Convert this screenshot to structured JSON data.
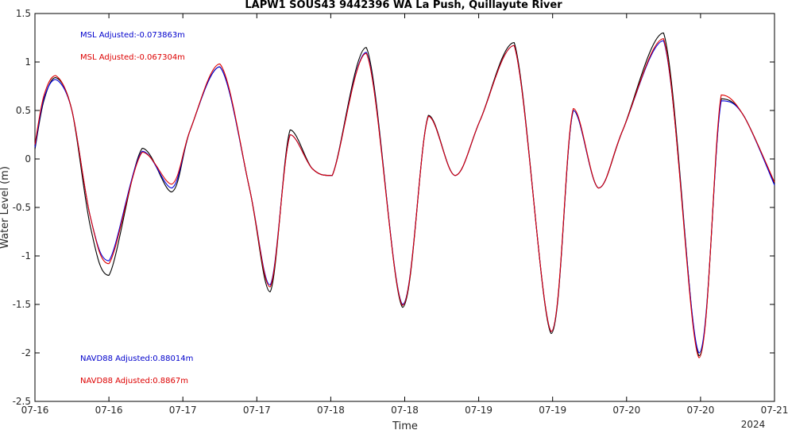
{
  "chart_data": {
    "type": "line",
    "title": "LAPW1 SOUS43 9442396 WA La Push, Quillayute River",
    "xlabel": "Time",
    "ylabel": "Water Level (m)",
    "ylim": [
      -2.5,
      1.5
    ],
    "yticks": [
      -2.5,
      -2,
      -1.5,
      -1,
      -0.5,
      0,
      0.5,
      1,
      1.5
    ],
    "ytick_labels": [
      "-2.5",
      "-2",
      "-1.5",
      "-1",
      "-0.5",
      "0",
      "0.5",
      "1",
      "1.5"
    ],
    "xlim": [
      0,
      10
    ],
    "xticks": [
      0,
      1,
      2,
      3,
      4,
      5,
      6,
      7,
      8,
      9,
      10
    ],
    "xtick_labels": [
      "07-16",
      "07-16",
      "07-17",
      "07-17",
      "07-18",
      "07-18",
      "07-19",
      "07-19",
      "07-20",
      "07-20",
      "07-21"
    ],
    "x_year_label": "2024",
    "grid": false,
    "annotations": [
      {
        "text": "MSL Adjusted:-0.073863m",
        "color": "#0000cc",
        "pos": "top-left"
      },
      {
        "text": "MSL Adjusted:-0.067304m",
        "color": "#dd0000",
        "pos": "top-left"
      },
      {
        "text": "NAVD88 Adjusted:0.88014m",
        "color": "#0000cc",
        "pos": "bottom-left"
      },
      {
        "text": "NAVD88 Adjusted:0.8867m",
        "color": "#dd0000",
        "pos": "bottom-left"
      }
    ],
    "series": [
      {
        "color": "#000000",
        "x": [
          0,
          0.12,
          0.28,
          0.5,
          0.75,
          1.0,
          1.45,
          1.85,
          2.1,
          2.5,
          2.9,
          3.18,
          3.45,
          3.75,
          4.02,
          4.48,
          4.97,
          5.32,
          5.68,
          6.02,
          6.48,
          6.98,
          7.28,
          7.62,
          7.95,
          8.5,
          8.98,
          9.28,
          9.58,
          10.0
        ],
        "y": [
          0.1,
          0.6,
          0.84,
          0.5,
          -0.7,
          -1.2,
          0.11,
          -0.34,
          0.3,
          0.95,
          -0.3,
          -1.37,
          0.3,
          -0.1,
          -0.17,
          1.15,
          -1.53,
          0.45,
          -0.17,
          0.4,
          1.2,
          -1.8,
          0.5,
          -0.3,
          0.3,
          1.3,
          -2.03,
          0.62,
          0.45,
          -0.25
        ]
      },
      {
        "color": "#0000dd",
        "x": [
          0,
          0.12,
          0.28,
          0.5,
          0.75,
          1.0,
          1.45,
          1.85,
          2.1,
          2.5,
          2.9,
          3.18,
          3.45,
          3.75,
          4.02,
          4.48,
          4.97,
          5.32,
          5.68,
          6.02,
          6.48,
          6.98,
          7.28,
          7.62,
          7.95,
          8.5,
          8.98,
          9.28,
          9.58,
          10.0
        ],
        "y": [
          0.12,
          0.62,
          0.82,
          0.5,
          -0.6,
          -1.05,
          0.08,
          -0.3,
          0.3,
          0.95,
          -0.3,
          -1.3,
          0.25,
          -0.1,
          -0.17,
          1.1,
          -1.5,
          0.44,
          -0.17,
          0.4,
          1.17,
          -1.78,
          0.5,
          -0.3,
          0.3,
          1.22,
          -2.0,
          0.6,
          0.45,
          -0.27
        ]
      },
      {
        "color": "#dd0000",
        "x": [
          0,
          0.12,
          0.28,
          0.5,
          0.75,
          1.0,
          1.45,
          1.85,
          2.1,
          2.5,
          2.9,
          3.18,
          3.45,
          3.75,
          4.02,
          4.48,
          4.97,
          5.32,
          5.68,
          6.02,
          6.48,
          6.98,
          7.28,
          7.62,
          7.95,
          8.5,
          8.98,
          9.28,
          9.58,
          10.0
        ],
        "y": [
          0.15,
          0.65,
          0.86,
          0.5,
          -0.6,
          -1.08,
          0.07,
          -0.26,
          0.3,
          0.98,
          -0.3,
          -1.32,
          0.25,
          -0.1,
          -0.17,
          1.09,
          -1.51,
          0.44,
          -0.17,
          0.4,
          1.17,
          -1.78,
          0.52,
          -0.3,
          0.3,
          1.24,
          -2.05,
          0.66,
          0.45,
          -0.24
        ]
      }
    ]
  }
}
